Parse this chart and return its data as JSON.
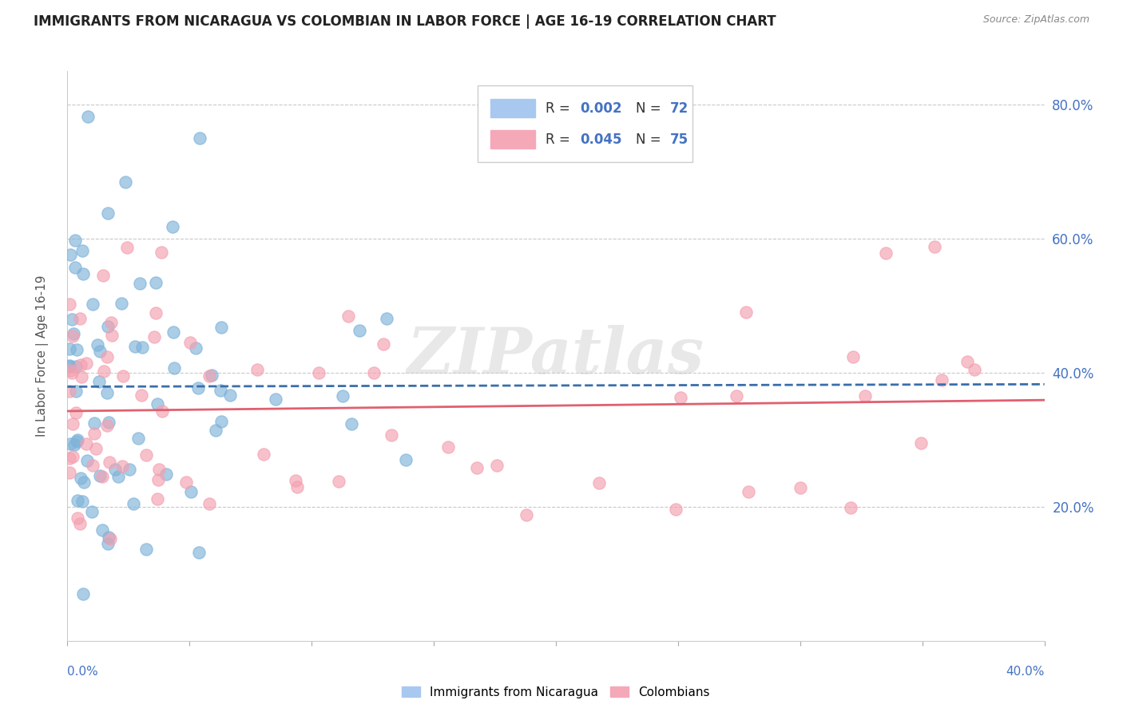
{
  "title": "IMMIGRANTS FROM NICARAGUA VS COLOMBIAN IN LABOR FORCE | AGE 16-19 CORRELATION CHART",
  "source": "Source: ZipAtlas.com",
  "ylabel": "In Labor Force | Age 16-19",
  "xlim": [
    0.0,
    0.4
  ],
  "ylim": [
    0.0,
    0.85
  ],
  "yticks": [
    0.2,
    0.4,
    0.6,
    0.8
  ],
  "ytick_labels": [
    "20.0%",
    "40.0%",
    "60.0%",
    "80.0%"
  ],
  "nicaragua_color": "#7fb3d9",
  "colombian_color": "#f4a0b0",
  "nicaragua_line_color": "#3a6eaa",
  "colombian_line_color": "#e06070",
  "watermark": "ZIPatlas",
  "background_color": "#ffffff",
  "grid_color": "#bbbbbb",
  "title_color": "#222222",
  "axis_label_color": "#4472c4",
  "legend_box_color": "#a8c8f0",
  "legend_pink_color": "#f5a8b8",
  "seed_nic": 42,
  "seed_col": 99,
  "nicaragua_N": 72,
  "colombian_N": 75
}
